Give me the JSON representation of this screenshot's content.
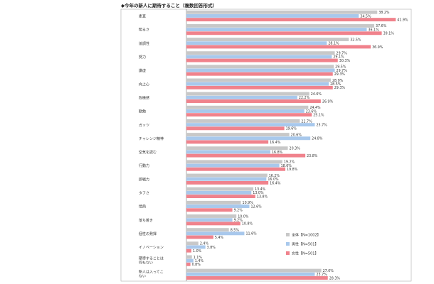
{
  "chart_data": {
    "type": "bar",
    "orientation": "horizontal",
    "title": "◆今年の新人に期待すること（複数回答形式）",
    "categories": [
      "素直",
      "明るさ",
      "協調性",
      "努力",
      "謙虚",
      "向上心",
      "危機感",
      "勤勉",
      "ガッツ",
      "チャレンジ精神",
      "空気を読む",
      "行動力",
      "即戦力",
      "タフさ",
      "情熱",
      "落ち着き",
      "個性の発揮",
      "イノベーション",
      "期待することは何もない",
      "新人は入ってこない"
    ],
    "series": [
      {
        "name": "全体【N=1002】",
        "color": "#c8c8c8",
        "values": [
          38.2,
          37.6,
          32.5,
          29.7,
          29.5,
          28.9,
          24.6,
          24.4,
          22.7,
          20.6,
          20.3,
          19.2,
          16.2,
          13.4,
          10.9,
          10.0,
          8.5,
          2.4,
          1.1,
          27.0
        ]
      },
      {
        "name": "男性【N=501】",
        "color": "#a8c8ec",
        "values": [
          34.5,
          36.1,
          28.1,
          29.1,
          29.7,
          28.5,
          22.2,
          23.6,
          25.7,
          24.8,
          16.8,
          18.6,
          16.0,
          13.0,
          12.6,
          9.2,
          11.6,
          3.8,
          1.4,
          25.7
        ]
      },
      {
        "name": "女性【N=501】",
        "color": "#f0828c",
        "values": [
          41.9,
          39.1,
          36.9,
          30.3,
          29.3,
          29.3,
          26.9,
          25.1,
          19.6,
          16.4,
          23.8,
          19.8,
          16.4,
          13.8,
          9.2,
          10.8,
          5.4,
          1.0,
          0.8,
          28.3
        ]
      }
    ],
    "xlim": [
      0,
      45
    ],
    "grid": false,
    "legend_position": "bottom-right"
  }
}
